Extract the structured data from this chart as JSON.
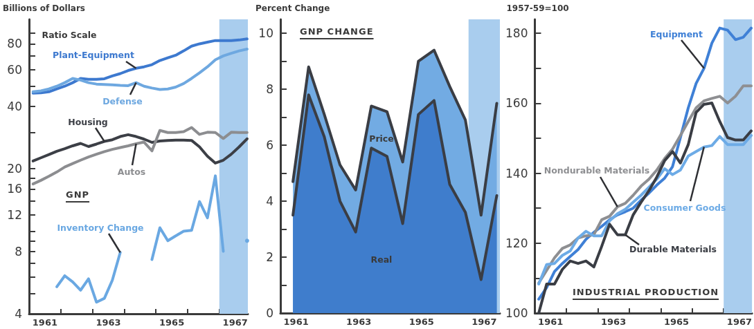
{
  "chart_data": [
    {
      "type": "line",
      "title": "GNP",
      "ylabel": "Billions of Dollars",
      "annotations": [
        "Ratio Scale"
      ],
      "log": "y",
      "marker": "none",
      "line_style": "solid",
      "grid": false,
      "x": [
        1961.125,
        1961.375,
        1961.625,
        1961.875,
        1962.125,
        1962.375,
        1962.625,
        1962.875,
        1963.125,
        1963.375,
        1963.625,
        1963.875,
        1964.125,
        1964.375,
        1964.625,
        1964.875,
        1965.125,
        1965.375,
        1965.625,
        1965.875,
        1966.125,
        1966.375,
        1966.625,
        1966.875,
        1967.125,
        1967.375,
        1967.625,
        1967.875
      ],
      "xlim": [
        1961,
        1967.9
      ],
      "xticks": [
        {
          "value": 1961.5,
          "label": "1961"
        },
        {
          "value": 1962,
          "label": null
        },
        {
          "value": 1963,
          "label": null
        },
        {
          "value": 1963.5,
          "label": "1963"
        },
        {
          "value": 1964,
          "label": null
        },
        {
          "value": 1965,
          "label": null
        },
        {
          "value": 1965.5,
          "label": "1965"
        },
        {
          "value": 1966,
          "label": null
        },
        {
          "value": 1967,
          "label": null
        },
        {
          "value": 1967.5,
          "label": "1967"
        }
      ],
      "ylim": [
        4,
        105
      ],
      "yticks": [
        4,
        {
          "value": 5,
          "label": null
        },
        {
          "value": 6,
          "label": null
        },
        {
          "value": 7,
          "label": null
        },
        8,
        {
          "value": 9,
          "label": null
        },
        {
          "value": 10,
          "label": null
        },
        12,
        {
          "value": 14,
          "label": null
        },
        16,
        {
          "value": 18,
          "label": null
        },
        20,
        {
          "value": 30,
          "label": null
        },
        40,
        {
          "value": 50,
          "label": null
        },
        60,
        {
          "value": 70,
          "label": null
        },
        80,
        {
          "value": 90,
          "label": null
        }
      ],
      "bands": [
        {
          "axis": "x",
          "from": 1967,
          "to": 1967.9,
          "color": "#a9cdee"
        }
      ],
      "series": [
        {
          "name": "Plant-Equipment",
          "color": "#3d79cf",
          "values": [
            46.3,
            46.5,
            47,
            48.5,
            50,
            52,
            54.5,
            54,
            54,
            54.3,
            56,
            57.5,
            59.5,
            61,
            62,
            63.5,
            66.5,
            68.5,
            70.5,
            74,
            78,
            80,
            81.5,
            83,
            83,
            83,
            83.5,
            84.5
          ]
        },
        {
          "name": "Defense",
          "color": "#6ea8e0",
          "values": [
            47,
            47.5,
            48.5,
            50,
            52,
            54.5,
            53.5,
            52,
            51.2,
            51,
            50.8,
            50.5,
            50.3,
            52,
            50,
            49,
            48.2,
            48.5,
            49.5,
            51.5,
            54.5,
            58,
            62,
            67,
            70,
            72,
            74,
            75.5
          ]
        },
        {
          "name": "Housing",
          "color": "#3c3f46",
          "values": [
            21.8,
            22.6,
            23.4,
            24.3,
            25,
            25.8,
            26.5,
            25.6,
            26.3,
            27.1,
            27.6,
            28.6,
            29.2,
            28.6,
            27.8,
            26.8,
            27.2,
            27.4,
            27.5,
            27.5,
            27.4,
            25.5,
            23,
            21.3,
            22,
            23.5,
            25.5,
            27.9
          ]
        },
        {
          "name": "Autos",
          "color": "#8c8d90",
          "values": [
            16.9,
            17.6,
            18.4,
            19.3,
            20.4,
            21.2,
            22,
            22.8,
            23.5,
            24.2,
            24.8,
            25.3,
            25.8,
            26.4,
            26.9,
            24.4,
            30.6,
            29.9,
            29.9,
            30.2,
            31.6,
            29.3,
            30,
            29.9,
            28,
            30,
            29.9,
            29.9
          ]
        },
        {
          "name": "Inventory Change",
          "color": "#6aa8e2",
          "values": [
            null,
            null,
            null,
            5.4,
            6.1,
            5.7,
            5.2,
            5.9,
            4.55,
            4.75,
            5.8,
            7.9,
            null,
            null,
            null,
            7.3,
            10.4,
            9,
            9.5,
            10,
            10.1,
            13.9,
            11.6,
            18.5,
            8,
            null,
            null,
            9
          ]
        }
      ]
    },
    {
      "type": "area",
      "stacked": true,
      "title": "GNP CHANGE",
      "ylabel": "Percent Change",
      "marker": "none",
      "line_style": "solid",
      "grid": false,
      "x": [
        1961.4,
        1961.9,
        1962.4,
        1962.9,
        1963.4,
        1963.9,
        1964.4,
        1964.9,
        1965.4,
        1965.9,
        1966.4,
        1966.9,
        1967.4,
        1967.9
      ],
      "xlim": [
        1961,
        1968
      ],
      "xticks": [
        {
          "value": 1961.5,
          "label": "1961"
        },
        {
          "value": 1962,
          "label": null
        },
        {
          "value": 1963,
          "label": null
        },
        {
          "value": 1963.5,
          "label": "1963"
        },
        {
          "value": 1964,
          "label": null
        },
        {
          "value": 1965,
          "label": null
        },
        {
          "value": 1965.5,
          "label": "1965"
        },
        {
          "value": 1966,
          "label": null
        },
        {
          "value": 1967,
          "label": null
        },
        {
          "value": 1967.5,
          "label": "1967"
        }
      ],
      "ylim": [
        0,
        10.5
      ],
      "yticks": [
        0,
        {
          "value": 1,
          "label": null
        },
        2,
        {
          "value": 3,
          "label": null
        },
        4,
        {
          "value": 5,
          "label": null
        },
        6,
        {
          "value": 7,
          "label": null
        },
        8,
        {
          "value": 9,
          "label": null
        },
        10
      ],
      "bands": [
        {
          "axis": "x",
          "from": 1967,
          "to": 1968,
          "color": "#a9cdee"
        }
      ],
      "series": [
        {
          "name": "Real",
          "color": "#3f7dcc",
          "values": [
            3.5,
            7.8,
            6.3,
            4,
            2.9,
            5.9,
            5.6,
            3.2,
            7.1,
            7.6,
            4.6,
            3.6,
            1.2,
            4.2
          ]
        },
        {
          "name": "Price",
          "color": "#72abe3",
          "values": [
            1.2,
            1,
            0.8,
            1.3,
            1.5,
            1.5,
            1.6,
            2.2,
            1.9,
            1.8,
            3.5,
            3.3,
            2.3,
            3.3
          ]
        }
      ]
    },
    {
      "type": "line",
      "title": "INDUSTRIAL PRODUCTION",
      "ylabel": "1957-59=100",
      "marker": "none",
      "line_style": "solid",
      "grid": false,
      "x": [
        1961.125,
        1961.375,
        1961.625,
        1961.875,
        1962.125,
        1962.375,
        1962.625,
        1962.875,
        1963.125,
        1963.375,
        1963.625,
        1963.875,
        1964.125,
        1964.375,
        1964.625,
        1964.875,
        1965.125,
        1965.375,
        1965.625,
        1965.875,
        1966.125,
        1966.375,
        1966.625,
        1966.875,
        1967.125,
        1967.375,
        1967.625,
        1967.875
      ],
      "xlim": [
        1961,
        1967.9
      ],
      "xticks": [
        {
          "value": 1961.5,
          "label": "1961"
        },
        {
          "value": 1962,
          "label": null
        },
        {
          "value": 1963,
          "label": null
        },
        {
          "value": 1963.5,
          "label": "1963"
        },
        {
          "value": 1964,
          "label": null
        },
        {
          "value": 1965,
          "label": null
        },
        {
          "value": 1965.5,
          "label": "1965"
        },
        {
          "value": 1966,
          "label": null
        },
        {
          "value": 1967,
          "label": null
        },
        {
          "value": 1967.5,
          "label": "1967"
        }
      ],
      "ylim": [
        100,
        184
      ],
      "yticks": [
        100,
        {
          "value": 110,
          "label": null
        },
        120,
        {
          "value": 130,
          "label": null
        },
        140,
        {
          "value": 150,
          "label": null
        },
        160,
        {
          "value": 170,
          "label": null
        },
        180
      ],
      "bands": [
        {
          "axis": "x",
          "from": 1967,
          "to": 1967.9,
          "color": "#a9cdee"
        }
      ],
      "series": [
        {
          "name": "Equipment",
          "color": "#3f80d6",
          "values": [
            104,
            107.3,
            111.9,
            114.2,
            116.2,
            118.2,
            121.1,
            123.1,
            124.8,
            126.7,
            128.1,
            129,
            130,
            132.3,
            134.3,
            136.6,
            138.6,
            141.9,
            150.2,
            158.7,
            165.7,
            170,
            177.2,
            181.5,
            180.9,
            178.2,
            178.9,
            181.5
          ]
        },
        {
          "name": "Nondurable Materials",
          "color": "#8e8f92",
          "values": [
            108.6,
            112.2,
            115.8,
            118.5,
            119.5,
            121.5,
            122.1,
            122.4,
            126.7,
            127.7,
            130.4,
            131.4,
            133.7,
            136.3,
            138.3,
            140.9,
            144.2,
            146.9,
            150.8,
            154.8,
            158.7,
            160.7,
            161.4,
            162,
            160.1,
            162,
            165,
            165
          ]
        },
        {
          "name": "Consumer Goods",
          "color": "#6dabe6",
          "values": [
            108.3,
            113.9,
            114.2,
            116.5,
            117.8,
            121.5,
            123.4,
            122.1,
            122.1,
            126.4,
            128.4,
            129.7,
            131.7,
            133.7,
            136,
            138.3,
            141.3,
            139.6,
            140.9,
            144.9,
            146.2,
            147.5,
            147.9,
            150.5,
            148.2,
            148.2,
            148.2,
            150.8
          ]
        },
        {
          "name": "Durable Materials",
          "color": "#3a3d44",
          "values": [
            100,
            108.3,
            108.3,
            112.5,
            114.9,
            114.2,
            114.9,
            113.2,
            119.1,
            125.4,
            122.4,
            122.4,
            128.1,
            131.7,
            135,
            138.9,
            143.6,
            146.2,
            142.9,
            148.2,
            157.4,
            159.7,
            160.1,
            154.8,
            150.2,
            149.5,
            149.5,
            152.1
          ]
        }
      ]
    }
  ]
}
